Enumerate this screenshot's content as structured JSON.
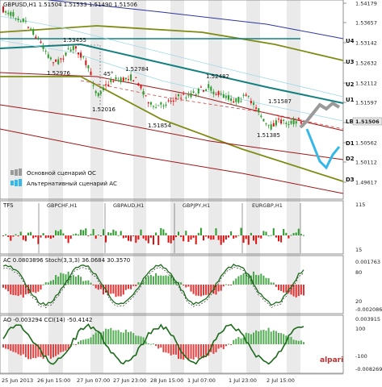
{
  "header": {
    "symbol": "GBPUSD,H1",
    "ohlc": "1.51504 1.51533 1.51490 1.51506"
  },
  "colors": {
    "bg": "#ffffff",
    "shade": "#d9d9d9",
    "bull": "#2a9a2a",
    "bear": "#e01010",
    "teal": "#138080",
    "olive": "#7f8c14",
    "navy": "#2d35a0",
    "darkred": "#a01515",
    "cyan": "#33b8e8",
    "grey": "#9a9a9a",
    "purple": "#6a3fa0"
  },
  "price_axis": {
    "ticks": [
      "1.54179",
      "1.53657",
      "1.53142",
      "1.52632",
      "1.52112",
      "1.51597",
      "1.51077",
      "1.50562",
      "1.50112",
      "1.49617"
    ],
    "current": "1.51506"
  },
  "levels": [
    "U4",
    "U3",
    "U2",
    "U1",
    "LB",
    "D1",
    "D2",
    "D3"
  ],
  "price_labels": [
    "1.53455",
    "1.52976",
    "1.52784",
    "1.52482",
    "1.52016",
    "1.51854",
    "1.51587",
    "1.51385"
  ],
  "angle_label": "45°",
  "legend": {
    "main": "Основной сценарий ОС",
    "alt": "Альтернативный сценарий АС"
  },
  "time_axis": [
    "25 Jun 2013",
    "26 Jun 15:00",
    "27 Jun 07:00",
    "27 Jun 23:00",
    "28 Jun 15:00",
    "1 Jul 07:00",
    "1 Jul 23:00",
    "2 Jul 15:00"
  ],
  "panel_tfs": {
    "title": "TFS",
    "pairs": [
      "GBPCHF,H1",
      "GBPAUD,H1",
      "GBPJPY,H1",
      "EURGBP,H1"
    ],
    "axis": [
      "115",
      "15"
    ]
  },
  "panel_ac": {
    "title": "AC 0.0803896  Stoch(3,3,3) 36.0684 30.3570",
    "axis": [
      "0.001763",
      "80",
      "20",
      "-0.002086"
    ]
  },
  "panel_ao": {
    "title": "AO -0.003294  CCI(14) -50.4142",
    "axis": [
      "0.003915",
      "100",
      "-100",
      "-0.008269"
    ]
  },
  "watermark": "alpari"
}
